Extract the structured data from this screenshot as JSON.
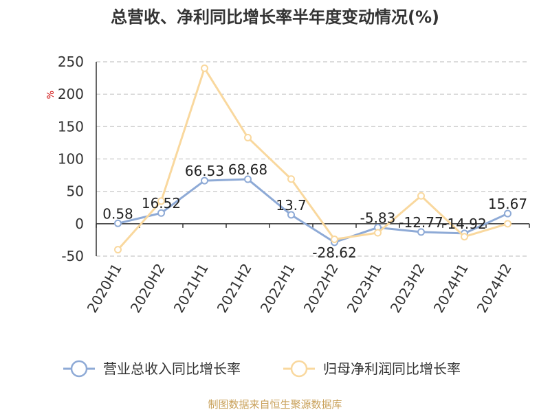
{
  "title": "总营收、净利同比增长率半年度变动情况(%)",
  "source": "制图数据来自恒生聚源数据库",
  "chart_data": {
    "type": "line",
    "title": "总营收、净利同比增长率半年度变动情况(%)",
    "ylabel": "%",
    "ylim": [
      -50,
      250
    ],
    "yticks": [
      250,
      200,
      150,
      100,
      50,
      0,
      -50
    ],
    "grid": true,
    "legend_position": "bottom",
    "categories": [
      "2020H1",
      "2020H2",
      "2021H1",
      "2021H2",
      "2022H1",
      "2022H2",
      "2023H1",
      "2023H2",
      "2024H1",
      "2024H2"
    ],
    "series": [
      {
        "name": "营业总收入同比增长率",
        "color": "#8eaad6",
        "values": [
          0.58,
          16.52,
          66.53,
          68.68,
          13.7,
          -28.62,
          -5.83,
          -12.77,
          -14.92,
          15.67
        ],
        "labels": [
          "0.58",
          "16.52",
          "66.53",
          "68.68",
          "13.7",
          "-28.62",
          "-5.83",
          "-12.77",
          "-14.92",
          "15.67"
        ]
      },
      {
        "name": "归母净利润同比增长率",
        "color": "#f9d89e",
        "values": [
          -40,
          35,
          240,
          133,
          69,
          -24,
          -14,
          43,
          -20,
          0
        ]
      }
    ]
  }
}
